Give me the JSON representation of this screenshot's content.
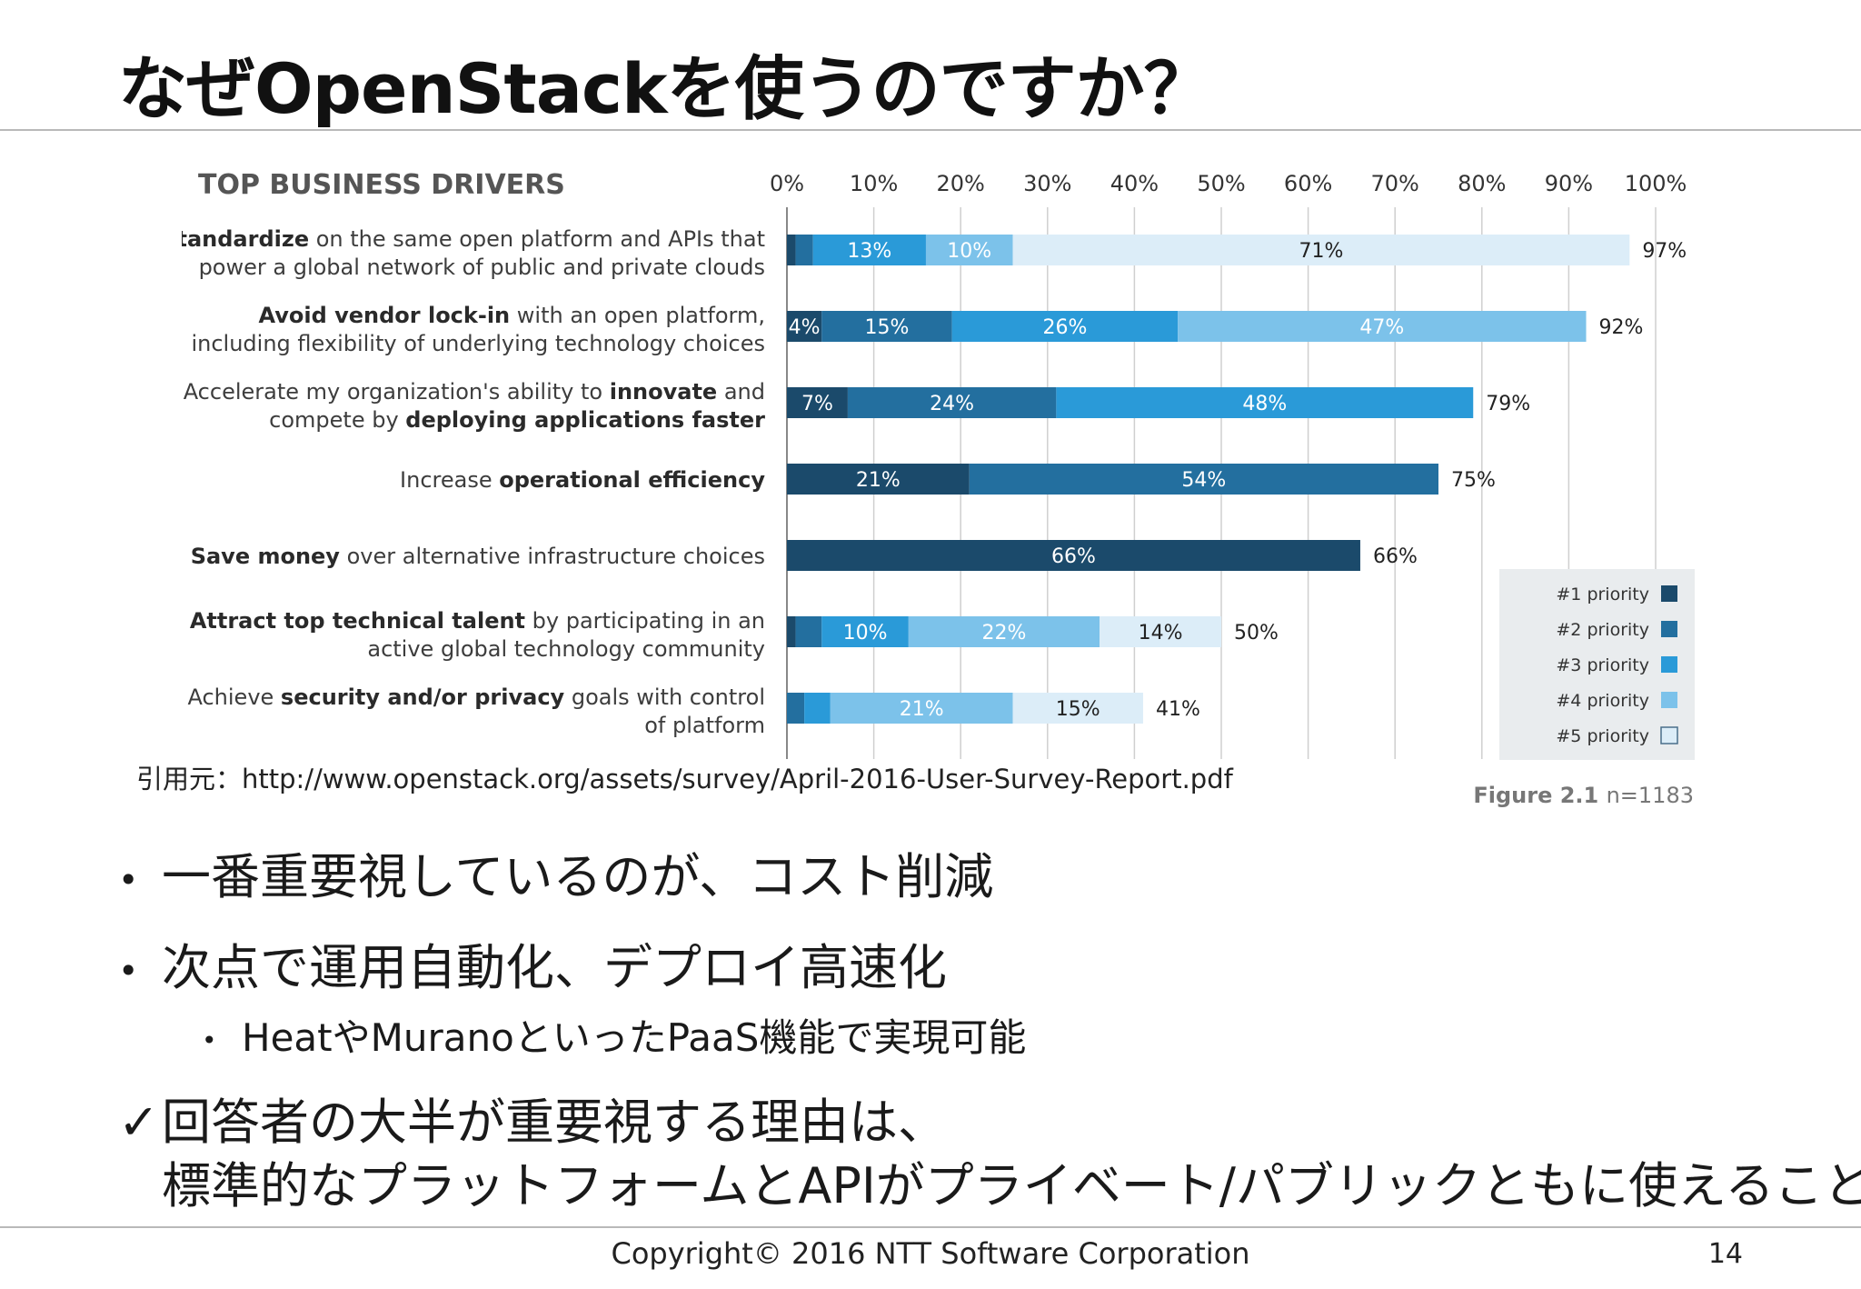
{
  "slide": {
    "title": "なぜOpenStackを使うのですか？",
    "source": "引用元：http://www.openstack.org/assets/survey/April-2016-User-Survey-Report.pdf",
    "bullets": [
      "一番重要視しているのが、コスト削減",
      "次点で運用自動化、デプロイ高速化"
    ],
    "sub_bullet": "HeatやMuranoといったPaaS機能で実現可能",
    "check_line1": "回答者の大半が重要視する理由は、",
    "check_line2": "標準的なプラットフォームとAPIがプライベート/パブリックともに使えること",
    "footer": "Copyright© 2016 NTT Software Corporation",
    "page_number": "14"
  },
  "colors": {
    "p1": "#1b4a6b",
    "p2": "#236f9f",
    "p3": "#2a9ad8",
    "p4": "#7cc2ea",
    "p5": "#dcedf8",
    "legend_bg": "#e9ecee",
    "label": "#3d3d3d",
    "grid": "#cfcfcf"
  },
  "chart_data": {
    "type": "bar",
    "title": "TOP BUSINESS DRIVERS",
    "x_ticks": [
      "0%",
      "10%",
      "20%",
      "30%",
      "40%",
      "50%",
      "60%",
      "70%",
      "80%",
      "90%",
      "100%"
    ],
    "xlim": [
      0,
      100
    ],
    "stacked": true,
    "orientation": "horizontal",
    "grid": true,
    "legend_position": "bottom-right",
    "figure_label": "Figure 2.1",
    "sample_size": "n=1183",
    "legend": [
      "#1 priority",
      "#2 priority",
      "#3 priority",
      "#4 priority",
      "#5 priority"
    ],
    "categories": [
      {
        "line1": [
          [
            "Standardize",
            true
          ],
          [
            " on the same open platform and APIs that",
            false
          ]
        ],
        "line2": [
          [
            "power a global network of public and private clouds",
            false
          ]
        ],
        "total": "97%",
        "segments": [
          {
            "priority": 1,
            "value": 1,
            "label": ""
          },
          {
            "priority": 2,
            "value": 2,
            "label": ""
          },
          {
            "priority": 3,
            "value": 13,
            "label": "13%"
          },
          {
            "priority": 4,
            "value": 10,
            "label": "10%"
          },
          {
            "priority": 5,
            "value": 71,
            "label": "71%"
          }
        ]
      },
      {
        "line1": [
          [
            "Avoid vendor lock-in",
            true
          ],
          [
            " with an open platform,",
            false
          ]
        ],
        "line2": [
          [
            "including flexibility of underlying technology choices",
            false
          ]
        ],
        "total": "92%",
        "segments": [
          {
            "priority": 1,
            "value": 4,
            "label": "4%"
          },
          {
            "priority": 2,
            "value": 15,
            "label": "15%"
          },
          {
            "priority": 3,
            "value": 26,
            "label": "26%"
          },
          {
            "priority": 4,
            "value": 47,
            "label": "47%"
          }
        ]
      },
      {
        "line1": [
          [
            "Accelerate my organization's ability to ",
            false
          ],
          [
            "innovate",
            true
          ],
          [
            " and",
            false
          ]
        ],
        "line2": [
          [
            "compete by ",
            false
          ],
          [
            "deploying applications faster",
            true
          ]
        ],
        "total": "79%",
        "segments": [
          {
            "priority": 1,
            "value": 7,
            "label": "7%"
          },
          {
            "priority": 2,
            "value": 24,
            "label": "24%"
          },
          {
            "priority": 3,
            "value": 48,
            "label": "48%"
          }
        ]
      },
      {
        "line1": [
          [
            "Increase ",
            false
          ],
          [
            "operational efficiency",
            true
          ]
        ],
        "line2": [],
        "total": "75%",
        "segments": [
          {
            "priority": 1,
            "value": 21,
            "label": "21%"
          },
          {
            "priority": 2,
            "value": 54,
            "label": "54%"
          }
        ]
      },
      {
        "line1": [
          [
            "Save money",
            true
          ],
          [
            " over alternative infrastructure choices",
            false
          ]
        ],
        "line2": [],
        "total": "66%",
        "segments": [
          {
            "priority": 1,
            "value": 66,
            "label": "66%"
          }
        ]
      },
      {
        "line1": [
          [
            "Attract top technical talent",
            true
          ],
          [
            " by participating in an",
            false
          ]
        ],
        "line2": [
          [
            "active global technology community",
            false
          ]
        ],
        "total": "50%",
        "segments": [
          {
            "priority": 1,
            "value": 1,
            "label": ""
          },
          {
            "priority": 2,
            "value": 3,
            "label": ""
          },
          {
            "priority": 3,
            "value": 10,
            "label": "10%"
          },
          {
            "priority": 4,
            "value": 22,
            "label": "22%"
          },
          {
            "priority": 5,
            "value": 14,
            "label": "14%"
          }
        ]
      },
      {
        "line1": [
          [
            "Achieve ",
            false
          ],
          [
            "security and/or privacy",
            true
          ],
          [
            " goals with control",
            false
          ]
        ],
        "line2": [
          [
            "of platform",
            false
          ]
        ],
        "total": "41%",
        "segments": [
          {
            "priority": 2,
            "value": 2,
            "label": ""
          },
          {
            "priority": 3,
            "value": 3,
            "label": ""
          },
          {
            "priority": 4,
            "value": 21,
            "label": "21%"
          },
          {
            "priority": 5,
            "value": 15,
            "label": "15%"
          }
        ]
      }
    ]
  }
}
